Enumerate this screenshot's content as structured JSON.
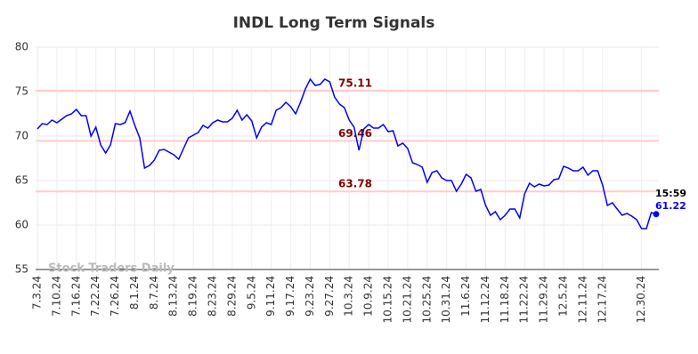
{
  "chart_data": {
    "type": "line",
    "title": "INDL Long Term Signals",
    "categories": [
      "7.3.24",
      null,
      null,
      null,
      "7.10.24",
      null,
      null,
      null,
      "7.16.24",
      null,
      null,
      null,
      "7.22.24",
      null,
      null,
      null,
      "7.26.24",
      null,
      null,
      null,
      "8.1.24",
      null,
      null,
      null,
      "8.7.24",
      null,
      null,
      null,
      "8.13.24",
      null,
      null,
      null,
      "8.19.24",
      null,
      null,
      null,
      "8.23.24",
      null,
      null,
      null,
      "8.29.24",
      null,
      null,
      null,
      "9.5.24",
      null,
      null,
      null,
      "9.11.24",
      null,
      null,
      null,
      "9.17.24",
      null,
      null,
      null,
      "9.23.24",
      null,
      null,
      null,
      "9.27.24",
      null,
      null,
      null,
      "10.3.24",
      null,
      null,
      null,
      "10.9.24",
      null,
      null,
      null,
      "10.15.24",
      null,
      null,
      null,
      "10.21.24",
      null,
      null,
      null,
      "10.25.24",
      null,
      null,
      null,
      "10.31.24",
      null,
      null,
      null,
      "11.6.24",
      null,
      null,
      null,
      "11.12.24",
      null,
      null,
      null,
      "11.18.24",
      null,
      null,
      null,
      "11.22.24",
      null,
      null,
      null,
      "11.29.24",
      null,
      null,
      null,
      "12.5.24",
      null,
      null,
      null,
      "12.11.24",
      null,
      null,
      null,
      "12.17.24",
      null,
      null,
      null,
      null,
      null,
      null,
      null,
      "12.30.24",
      null,
      null,
      null
    ],
    "series": [
      {
        "name": "INDL",
        "color": "#0000ff",
        "values": [
          70.8,
          71.4,
          71.3,
          71.8,
          71.5,
          71.9,
          72.3,
          72.5,
          73.0,
          72.3,
          72.3,
          70.0,
          71.0,
          69.0,
          68.1,
          69.0,
          71.4,
          71.3,
          71.5,
          72.8,
          71.2,
          69.8,
          66.4,
          66.7,
          67.3,
          68.4,
          68.5,
          68.2,
          67.9,
          67.4,
          68.6,
          69.8,
          70.1,
          70.4,
          71.2,
          70.9,
          71.5,
          71.8,
          71.6,
          71.6,
          72.0,
          72.9,
          71.8,
          72.4,
          71.7,
          69.8,
          71.0,
          71.5,
          71.3,
          72.9,
          73.2,
          73.8,
          73.3,
          72.5,
          73.8,
          75.3,
          76.4,
          75.7,
          75.8,
          76.4,
          76.1,
          74.4,
          73.6,
          73.2,
          71.8,
          71.0,
          68.4,
          70.8,
          71.3,
          70.9,
          70.9,
          71.3,
          70.5,
          70.6,
          68.9,
          69.2,
          68.6,
          67.0,
          66.8,
          66.5,
          64.8,
          65.9,
          66.1,
          65.3,
          65.0,
          65.0,
          63.8,
          64.6,
          65.7,
          65.3,
          63.8,
          64.0,
          62.2,
          61.1,
          61.5,
          60.6,
          61.1,
          61.8,
          61.8,
          60.8,
          63.5,
          64.7,
          64.3,
          64.6,
          64.4,
          64.5,
          65.1,
          65.2,
          66.6,
          66.4,
          66.1,
          66.1,
          66.5,
          65.6,
          66.1,
          66.1,
          64.5,
          62.2,
          62.5,
          61.8,
          61.1,
          61.3,
          61.0,
          60.6,
          59.6,
          59.6,
          61.4,
          61.22
        ]
      }
    ],
    "hlines": [
      75.11,
      69.46,
      63.78
    ],
    "hline_color": "#ffcccc",
    "hline_label_color": "#800000",
    "last_time": "15:59",
    "watermark": "Stock Traders Daily",
    "ylim": [
      55,
      80
    ],
    "yticks": [
      55,
      60,
      65,
      70,
      75,
      80
    ],
    "grid": true
  }
}
